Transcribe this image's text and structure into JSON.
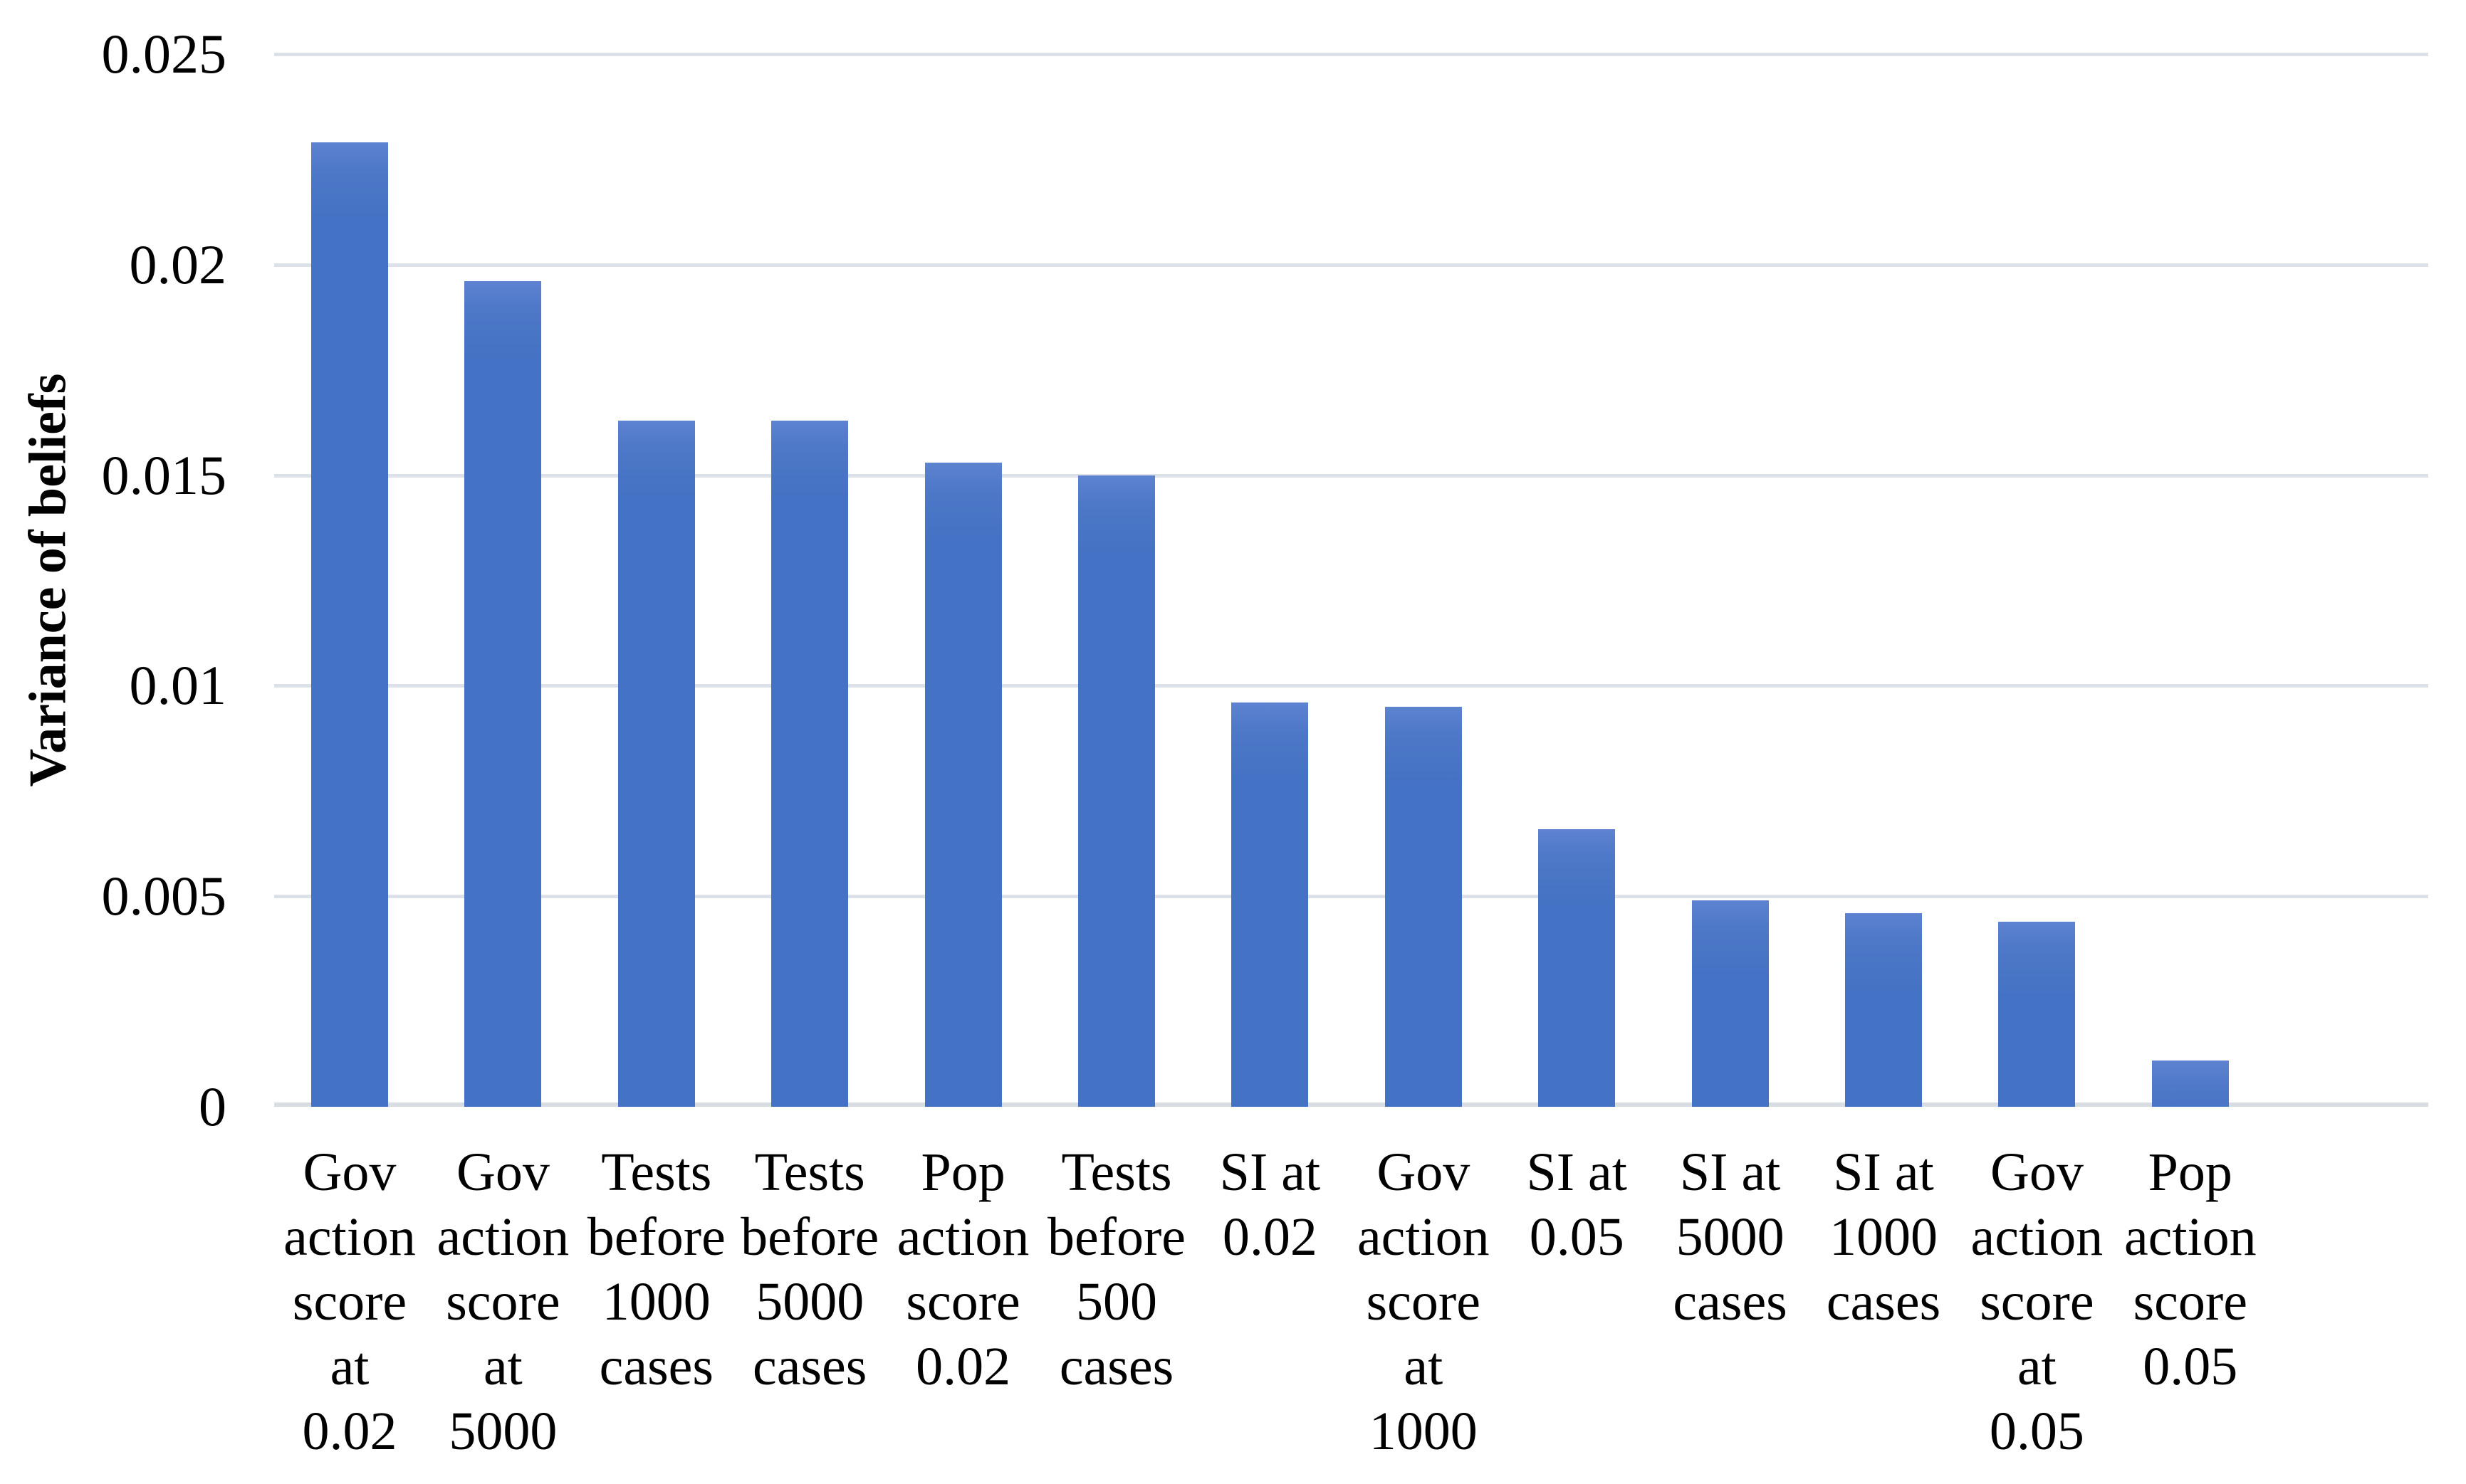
{
  "figure": {
    "background": "#ffffff",
    "text_color": "#000000",
    "bar_color": "#4472c4",
    "bar_highlight_color": "#5d83d1",
    "gridline_color": "#dde2ea",
    "axis_line_color": "#d8dde4"
  },
  "chart_data": {
    "type": "bar",
    "title": "",
    "xlabel": "",
    "ylabel": "Variance of beliefs",
    "ylim": [
      0,
      0.025
    ],
    "grid": true,
    "legend": false,
    "yticks": [
      {
        "value": 0.025,
        "label": "0.025"
      },
      {
        "value": 0.02,
        "label": "0.02"
      },
      {
        "value": 0.015,
        "label": "0.015"
      },
      {
        "value": 0.01,
        "label": "0.01"
      },
      {
        "value": 0.005,
        "label": "0.005"
      },
      {
        "value": 0,
        "label": "0"
      }
    ],
    "categories": [
      {
        "label": "Gov action score at 0.02",
        "lines": [
          "Gov",
          "action",
          "score",
          "at",
          "0.02"
        ]
      },
      {
        "label": "Gov action score at 5000",
        "lines": [
          "Gov",
          "action",
          "score",
          "at",
          "5000"
        ]
      },
      {
        "label": "Tests before 1000 cases",
        "lines": [
          "Tests",
          "before",
          "1000",
          "cases"
        ]
      },
      {
        "label": "Tests before 5000 cases",
        "lines": [
          "Tests",
          "before",
          "5000",
          "cases"
        ]
      },
      {
        "label": "Pop action score 0.02",
        "lines": [
          "Pop",
          "action",
          "score",
          "0.02"
        ]
      },
      {
        "label": "Tests before 500 cases",
        "lines": [
          "Tests",
          "before",
          "500",
          "cases"
        ]
      },
      {
        "label": "SI at 0.02",
        "lines": [
          "SI at",
          "0.02"
        ]
      },
      {
        "label": "Gov action score at 1000",
        "lines": [
          "Gov",
          "action",
          "score",
          "at",
          "1000"
        ]
      },
      {
        "label": "SI at 0.05",
        "lines": [
          "SI at",
          "0.05"
        ]
      },
      {
        "label": "SI at 5000 cases",
        "lines": [
          "SI at",
          "5000",
          "cases"
        ]
      },
      {
        "label": "SI at 1000 cases",
        "lines": [
          "SI at",
          "1000",
          "cases"
        ]
      },
      {
        "label": "Gov action score at 0.05",
        "lines": [
          "Gov",
          "action",
          "score",
          "at",
          "0.05"
        ]
      },
      {
        "label": "Pop action score 0.05",
        "lines": [
          "Pop",
          "action",
          "score",
          "0.05"
        ]
      }
    ],
    "values": [
      0.0229,
      0.0196,
      0.0163,
      0.0163,
      0.0153,
      0.015,
      0.0096,
      0.0095,
      0.0066,
      0.0049,
      0.0046,
      0.0044,
      0.0011
    ]
  }
}
